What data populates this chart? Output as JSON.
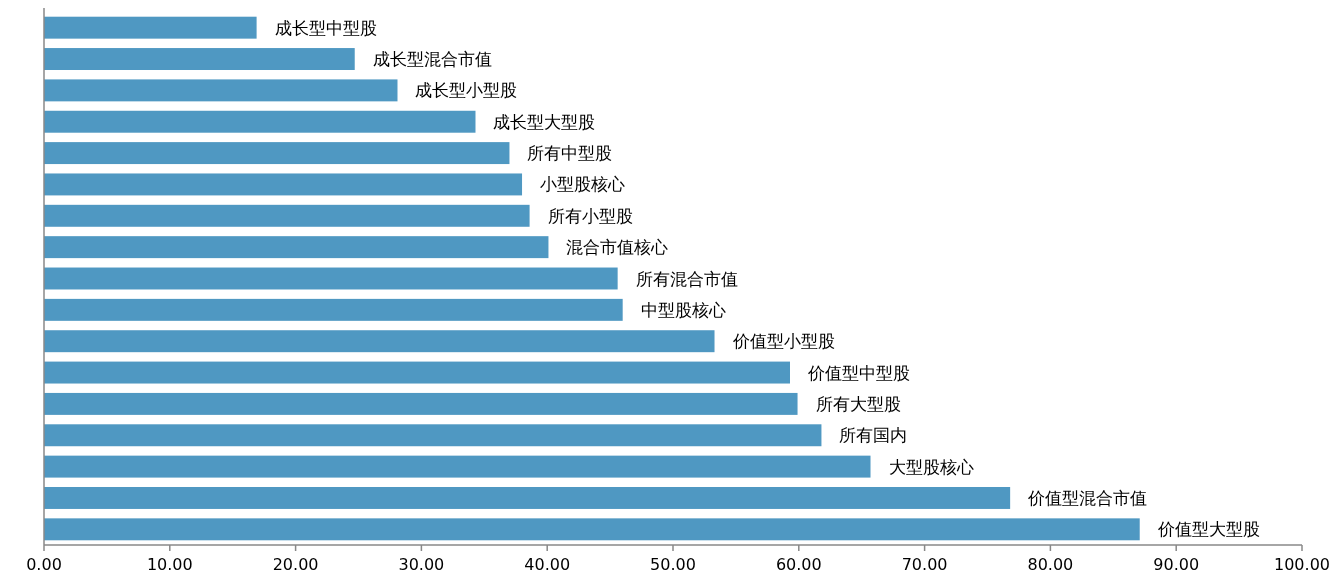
{
  "chart_data": {
    "type": "bar",
    "orientation": "horizontal",
    "color": "#4f98c2",
    "categories": [
      "成长型中型股",
      "成长型混合市值",
      "成长型小型股",
      "成长型大型股",
      "所有中型股",
      "小型股核心",
      "所有小型股",
      "混合市值核心",
      "所有混合市值",
      "中型股核心",
      "价值型小型股",
      "价值型中型股",
      "所有大型股",
      "所有国内",
      "大型股核心",
      "价值型混合市值",
      "价值型大型股"
    ],
    "values": [
      16.9,
      24.7,
      28.1,
      34.3,
      37.0,
      38.0,
      38.6,
      40.1,
      45.6,
      46.0,
      53.3,
      59.3,
      59.9,
      61.8,
      65.7,
      76.8,
      87.1
    ],
    "xlim": [
      0,
      100
    ],
    "xticks": [
      {
        "value": 0,
        "label": "0.00"
      },
      {
        "value": 10,
        "label": "10.00"
      },
      {
        "value": 20,
        "label": "20.00"
      },
      {
        "value": 30,
        "label": "30.00"
      },
      {
        "value": 40,
        "label": "40.00"
      },
      {
        "value": 50,
        "label": "50.00"
      },
      {
        "value": 60,
        "label": "60.00"
      },
      {
        "value": 70,
        "label": "70.00"
      },
      {
        "value": 80,
        "label": "80.00"
      },
      {
        "value": 90,
        "label": "90.00"
      },
      {
        "value": 100,
        "label": "100.00"
      }
    ],
    "grid": false
  }
}
